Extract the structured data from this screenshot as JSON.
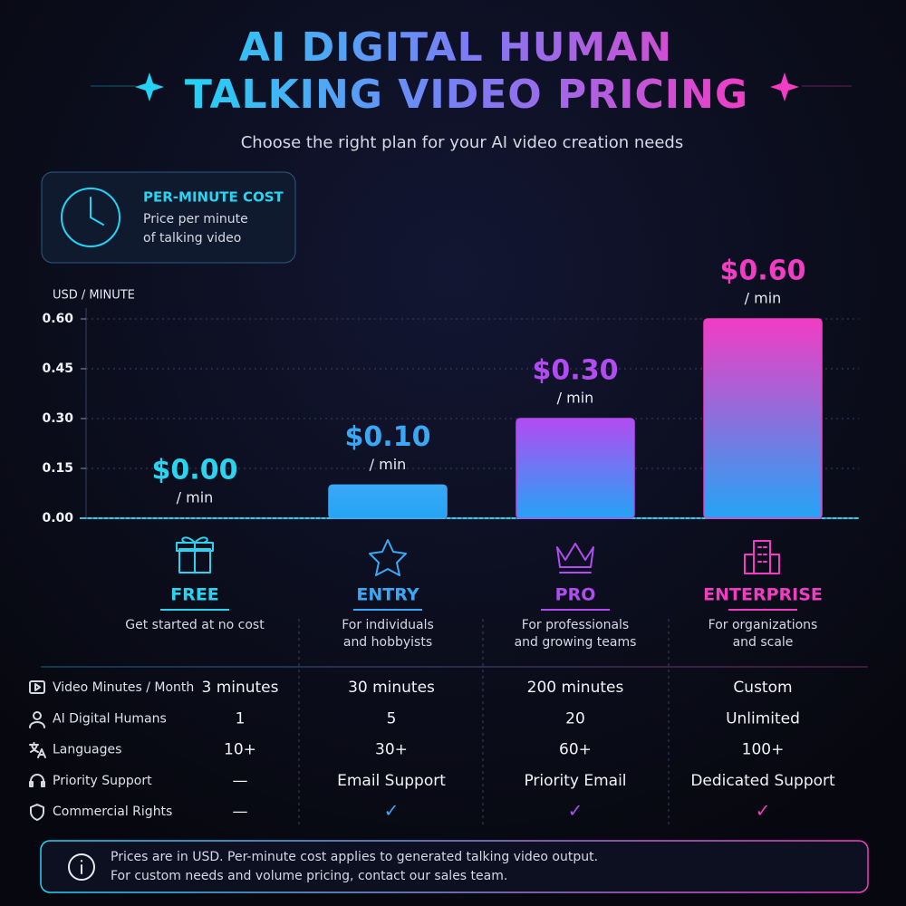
{
  "header": {
    "title_line1": "AI DIGITAL HUMAN",
    "title_line2": "TALKING VIDEO PRICING",
    "subtitle": "Choose the right plan for your AI video creation needs"
  },
  "info_card": {
    "title": "PER-MINUTE COST",
    "line1": "Price per minute",
    "line2": "of talking video"
  },
  "chart_data": {
    "type": "bar",
    "y_axis_label": "USD / MINUTE",
    "categories": [
      "FREE",
      "ENTRY",
      "PRO",
      "ENTERPRISE"
    ],
    "values": [
      0,
      0.1,
      0.3,
      0.6
    ],
    "value_labels": [
      "$0.00",
      "$0.10",
      "$0.30",
      "$0.60"
    ],
    "unit_label": "/ min",
    "colors": [
      "#2ad4f0",
      "#3aa8f5",
      "#b24cf2",
      "#f23cc4"
    ],
    "ylim": [
      0,
      0.6
    ],
    "yticks": [
      {
        "value": 0,
        "label": "0.00"
      },
      0.15,
      {
        "value": 0.3,
        "label": "0.30"
      },
      0.45,
      {
        "value": 0.6,
        "label": "0.60"
      }
    ],
    "grid": true
  },
  "plans": [
    {
      "description": [
        "Get started at no cost"
      ]
    },
    {
      "description": [
        "For individuals",
        "and hobbyists"
      ]
    },
    {
      "description": [
        "For professionals",
        "and growing teams"
      ]
    },
    {
      "description": [
        "For organizations",
        "and scale"
      ]
    }
  ],
  "features": [
    {
      "label": "Video Minutes / Month",
      "values": [
        "3 minutes",
        "30 minutes",
        "200 minutes",
        "Custom"
      ]
    },
    {
      "label": "AI Digital Humans",
      "values": [
        "1",
        "5",
        "20",
        "Unlimited"
      ]
    },
    {
      "label": "Languages",
      "values": [
        "10+",
        "30+",
        "60+",
        "100+"
      ]
    },
    {
      "label": "Priority Support",
      "values": [
        "—",
        "Email Support",
        "Priority Email",
        "Dedicated Support"
      ]
    },
    {
      "label": "Commercial Rights",
      "values": [
        "—",
        "✓",
        "✓",
        "✓"
      ]
    }
  ],
  "footer": {
    "line1": "Prices are in USD. Per-minute cost applies to generated talking video output.",
    "line2": "For custom needs and volume pricing, contact our sales team."
  }
}
